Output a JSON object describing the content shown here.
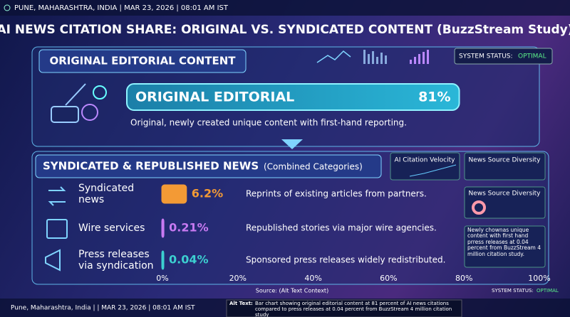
{
  "header": {
    "location": "PUNE, MAHARASHTRA, INDIA | MAR 23, 2026 | 08:01 AM IST"
  },
  "status": {
    "label": "SYSTEM STATUS:",
    "value": "OPTIMAL"
  },
  "widgets": [
    "AI Citation Velocity",
    "News Source Diversity",
    "News Source Diversity"
  ],
  "note": "Newly chownas unique content with first hand prress releases at 0.04 percent from BuzzStream 4 million citation study.",
  "footer": {
    "location": "Pune, Maharashtra, India | | MAR 23, 2026 | 08:01 AM IST",
    "status_label": "SYSTEM STATUS:",
    "status_value": "OPTIMAL",
    "alt_label": "Alt Text:",
    "alt_text": "Bar chart showing original editorial content at 81 percent of AI news citations compared to press releases at 0.04 percent from BuzzStream 4 million citation study"
  },
  "chart_data": {
    "type": "bar",
    "title": "AI NEWS CITATION SHARE: ORIGINAL VS. SYNDICATED CONTENT (BuzzStream Study)",
    "original_section": "ORIGINAL EDITORIAL CONTENT",
    "syndicated_section": "SYNDICATED & REPUBLISHED NEWS",
    "syndicated_subtitle": "(Combined Categories)",
    "categories": [
      "ORIGINAL EDITORIAL",
      "Syndicated news",
      "Wire services",
      "Press releases via syndication"
    ],
    "values": [
      81,
      6.2,
      0.21,
      0.04
    ],
    "value_labels": [
      "81%",
      "6.2%",
      "0.21%",
      "0.04%"
    ],
    "descriptions": [
      "Original, newly created unique content with first-hand reporting.",
      "Reprints of existing articles from partners.",
      "Republished stories via major wire agencies.",
      "Sponsored press releases widely redistributed."
    ],
    "colors": [
      "#1d9fc4",
      "#f39a35",
      "#c87af2",
      "#3ccfd0"
    ],
    "xlim": [
      0,
      100
    ],
    "xticks": [
      {
        "value": 0,
        "label": "0%"
      },
      {
        "value": 20,
        "label": "20%"
      },
      {
        "value": 40,
        "label": "40%"
      },
      {
        "value": 60,
        "label": "60%"
      },
      {
        "value": 80,
        "label": "80%"
      },
      {
        "value": 100,
        "label": "100%"
      }
    ],
    "source": "Source: (Alt Text Context)"
  }
}
